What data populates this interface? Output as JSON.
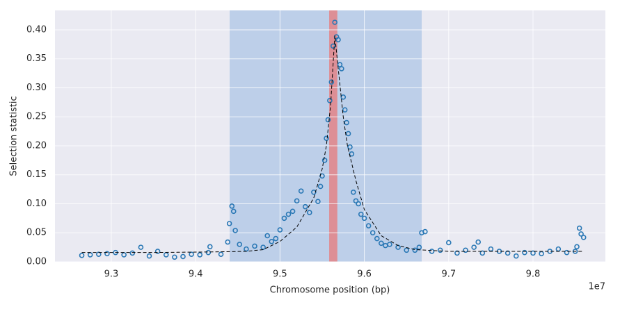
{
  "chart_data": {
    "type": "scatter",
    "x_label": "Chromosome position (bp)",
    "y_label": "Selection statistic",
    "x_offset_label": "1e7",
    "xlim": [
      9.2332,
      9.8858
    ],
    "ylim": [
      0,
      0.4335
    ],
    "xticks": [
      9.3,
      9.4,
      9.5,
      9.6,
      9.7,
      9.8
    ],
    "yticks": [
      {
        "value": 0,
        "label": "0.00"
      },
      {
        "value": 0.05,
        "label": "0.05"
      },
      {
        "value": 0.1,
        "label": "0.10"
      },
      {
        "value": 0.15,
        "label": "0.15"
      },
      {
        "value": 0.2,
        "label": "0.20"
      },
      {
        "value": 0.25,
        "label": "0.25"
      },
      {
        "value": 0.3,
        "label": "0.30"
      },
      {
        "value": 0.35,
        "label": "0.35"
      },
      {
        "value": 0.4,
        "label": "0.40"
      }
    ],
    "grid": true,
    "spans": [
      {
        "start": 9.4403,
        "end": 9.668,
        "color": "#8fb4e0"
      },
      {
        "start": 9.5583,
        "end": 9.568,
        "color": "#e8797a"
      }
    ],
    "series": [
      {
        "style": "markers",
        "color": "#2a78b5",
        "x": [
          9.265,
          9.275,
          9.285,
          9.295,
          9.305,
          9.315,
          9.325,
          9.335,
          9.345,
          9.355,
          9.365,
          9.375,
          9.385,
          9.395,
          9.405,
          9.415,
          9.417,
          9.43,
          9.438,
          9.44,
          9.443,
          9.445,
          9.447,
          9.452,
          9.46,
          9.47,
          9.48,
          9.485,
          9.49,
          9.495,
          9.5,
          9.505,
          9.51,
          9.515,
          9.52,
          9.525,
          9.53,
          9.535,
          9.54,
          9.545,
          9.548,
          9.55,
          9.553,
          9.555,
          9.557,
          9.559,
          9.561,
          9.563,
          9.565,
          9.567,
          9.569,
          9.571,
          9.573,
          9.575,
          9.577,
          9.579,
          9.581,
          9.583,
          9.585,
          9.587,
          9.59,
          9.593,
          9.596,
          9.6,
          9.605,
          9.61,
          9.615,
          9.62,
          9.625,
          9.63,
          9.64,
          9.65,
          9.66,
          9.665,
          9.668,
          9.672,
          9.68,
          9.69,
          9.7,
          9.71,
          9.72,
          9.73,
          9.735,
          9.74,
          9.75,
          9.76,
          9.77,
          9.78,
          9.79,
          9.8,
          9.81,
          9.82,
          9.83,
          9.84,
          9.85,
          9.852,
          9.855,
          9.857,
          9.86
        ],
        "values": [
          0.011,
          0.012,
          0.013,
          0.014,
          0.016,
          0.012,
          0.015,
          0.025,
          0.01,
          0.018,
          0.012,
          0.008,
          0.009,
          0.013,
          0.012,
          0.016,
          0.026,
          0.013,
          0.034,
          0.066,
          0.096,
          0.087,
          0.054,
          0.03,
          0.022,
          0.027,
          0.025,
          0.045,
          0.035,
          0.04,
          0.055,
          0.075,
          0.082,
          0.087,
          0.105,
          0.122,
          0.095,
          0.085,
          0.12,
          0.104,
          0.13,
          0.148,
          0.175,
          0.213,
          0.245,
          0.278,
          0.31,
          0.372,
          0.413,
          0.388,
          0.383,
          0.34,
          0.333,
          0.284,
          0.262,
          0.24,
          0.221,
          0.198,
          0.186,
          0.12,
          0.105,
          0.1,
          0.082,
          0.075,
          0.062,
          0.05,
          0.04,
          0.032,
          0.028,
          0.03,
          0.025,
          0.02,
          0.02,
          0.025,
          0.05,
          0.052,
          0.018,
          0.02,
          0.033,
          0.015,
          0.02,
          0.025,
          0.034,
          0.015,
          0.022,
          0.018,
          0.015,
          0.01,
          0.016,
          0.015,
          0.014,
          0.018,
          0.022,
          0.016,
          0.018,
          0.026,
          0.058,
          0.048,
          0.042
        ]
      },
      {
        "style": "dashed",
        "color": "#000000",
        "x": [
          9.265,
          9.35,
          9.42,
          9.46,
          9.48,
          9.5,
          9.52,
          9.54,
          9.55,
          9.555,
          9.56,
          9.565,
          9.57,
          9.575,
          9.58,
          9.59,
          9.6,
          9.62,
          9.64,
          9.66,
          9.7,
          9.8,
          9.86
        ],
        "values": [
          0.016,
          0.016,
          0.017,
          0.018,
          0.021,
          0.035,
          0.06,
          0.11,
          0.16,
          0.2,
          0.27,
          0.39,
          0.32,
          0.25,
          0.2,
          0.14,
          0.09,
          0.045,
          0.028,
          0.021,
          0.018,
          0.018,
          0.018
        ]
      }
    ]
  }
}
